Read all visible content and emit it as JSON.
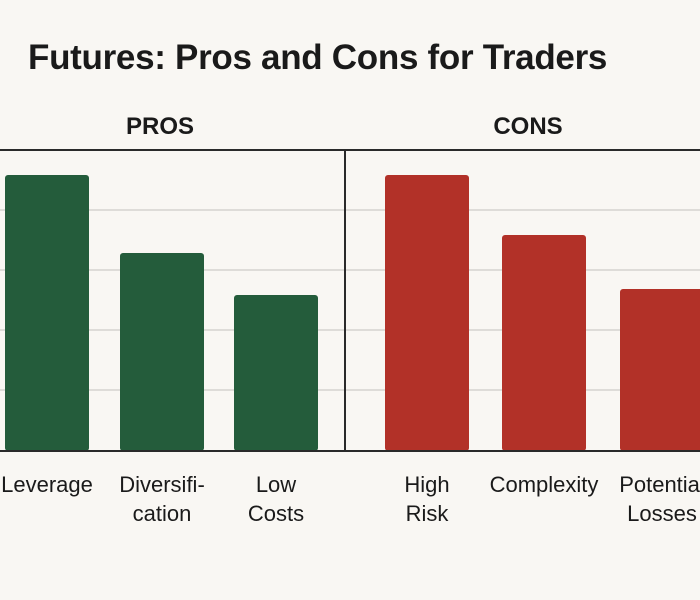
{
  "title": "Futures: Pros and Cons for Traders",
  "colors": {
    "background": "#f9f7f3",
    "pros_bar": "#245c3b",
    "cons_bar": "#b23128",
    "grid": "#d6d4cf",
    "axis": "#2a2a2a"
  },
  "chart_data": [
    {
      "type": "bar",
      "panel_title": "PROS",
      "categories": [
        "Leverage",
        "Diversifi-\ncation",
        "Low\nCosts"
      ],
      "values": [
        46,
        33,
        26
      ],
      "ylim": [
        0,
        50
      ],
      "grid": true,
      "color": "#245c3b"
    },
    {
      "type": "bar",
      "panel_title": "CONS",
      "categories": [
        "High\nRisk",
        "Complexity",
        "Potential\nLosses"
      ],
      "values": [
        46,
        36,
        27
      ],
      "ylim": [
        0,
        50
      ],
      "grid": true,
      "color": "#b23128"
    }
  ]
}
